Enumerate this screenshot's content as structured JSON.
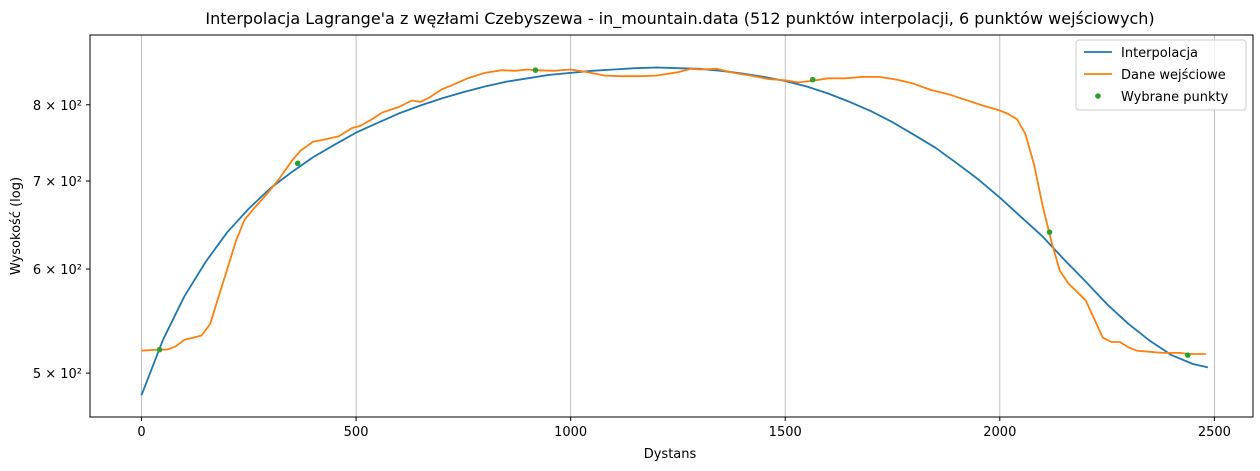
{
  "chart_data": {
    "type": "line",
    "title": "Interpolacja Lagrange'a z węzłami Czebyszewa - in_mountain.data (512 punktów interpolacji, 6 punktów wejściowych)",
    "xlabel": "Dystans",
    "ylabel": "Wysokość (log)",
    "xlim": [
      -120,
      2590
    ],
    "ylim": [
      463,
      904
    ],
    "yscale": "log",
    "x_ticks": [
      0,
      500,
      1000,
      1500,
      2000,
      2500
    ],
    "y_ticks": [
      {
        "value": 500,
        "label": "5 × 10²"
      },
      {
        "value": 600,
        "label": "6 × 10²"
      },
      {
        "value": 700,
        "label": "7 × 10²"
      },
      {
        "value": 800,
        "label": "8 × 10²"
      }
    ],
    "grid": "x-major",
    "legend_position": "top-right",
    "series": [
      {
        "name": "Interpolacja",
        "color": "#1f77b4",
        "style": "line",
        "x": [
          0,
          50,
          100,
          150,
          200,
          250,
          300,
          350,
          400,
          450,
          500,
          550,
          600,
          650,
          700,
          750,
          800,
          850,
          900,
          950,
          1000,
          1050,
          1100,
          1150,
          1200,
          1250,
          1300,
          1350,
          1400,
          1450,
          1500,
          1550,
          1600,
          1650,
          1700,
          1750,
          1800,
          1850,
          1900,
          1950,
          2000,
          2050,
          2100,
          2150,
          2200,
          2250,
          2300,
          2350,
          2400,
          2450,
          2485
        ],
        "y": [
          481,
          530,
          572,
          608,
          640,
          667,
          691,
          711,
          730,
          746,
          762,
          775,
          788,
          799,
          809,
          818,
          826,
          833,
          838,
          843,
          846,
          849,
          851,
          853,
          854,
          853,
          852,
          849,
          845,
          840,
          834,
          826,
          816,
          804,
          791,
          776,
          759,
          742,
          722,
          702,
          680,
          657,
          635,
          610,
          587,
          564,
          545,
          529,
          516,
          508,
          505
        ]
      },
      {
        "name": "Dane wejściowe",
        "color": "#ff7f0e",
        "style": "line",
        "x": [
          0,
          40,
          60,
          80,
          100,
          120,
          140,
          160,
          180,
          200,
          220,
          240,
          260,
          290,
          320,
          350,
          370,
          400,
          420,
          460,
          490,
          510,
          540,
          560,
          600,
          630,
          650,
          670,
          700,
          720,
          760,
          800,
          840,
          870,
          900,
          920,
          960,
          1000,
          1040,
          1080,
          1120,
          1160,
          1200,
          1250,
          1280,
          1300,
          1340,
          1380,
          1420,
          1460,
          1500,
          1530,
          1560,
          1600,
          1640,
          1680,
          1720,
          1760,
          1800,
          1840,
          1880,
          1920,
          1960,
          2000,
          2020,
          2040,
          2060,
          2080,
          2100,
          2120,
          2140,
          2160,
          2200,
          2220,
          2240,
          2260,
          2280,
          2300,
          2320,
          2350,
          2380,
          2420,
          2440,
          2480
        ],
        "y": [
          520,
          521,
          521,
          524,
          530,
          532,
          534,
          545,
          572,
          600,
          630,
          654,
          666,
          683,
          702,
          725,
          738,
          750,
          752,
          757,
          768,
          771,
          781,
          789,
          797,
          806,
          804,
          810,
          822,
          827,
          838,
          846,
          850,
          849,
          851,
          850,
          849,
          851,
          847,
          842,
          841,
          841,
          842,
          847,
          852,
          851,
          852,
          846,
          842,
          837,
          835,
          832,
          834,
          838,
          838,
          840,
          840,
          836,
          830,
          821,
          815,
          807,
          799,
          792,
          787,
          780,
          760,
          720,
          670,
          630,
          598,
          585,
          568,
          550,
          532,
          528,
          528,
          523,
          520,
          519,
          518,
          518,
          517,
          517
        ]
      },
      {
        "name": "Wybrane punkty",
        "color": "#2ca02c",
        "style": "scatter",
        "x": [
          42,
          364,
          918,
          1564,
          2116,
          2438
        ],
        "y": [
          521,
          722,
          850,
          836,
          640,
          516
        ]
      }
    ]
  }
}
